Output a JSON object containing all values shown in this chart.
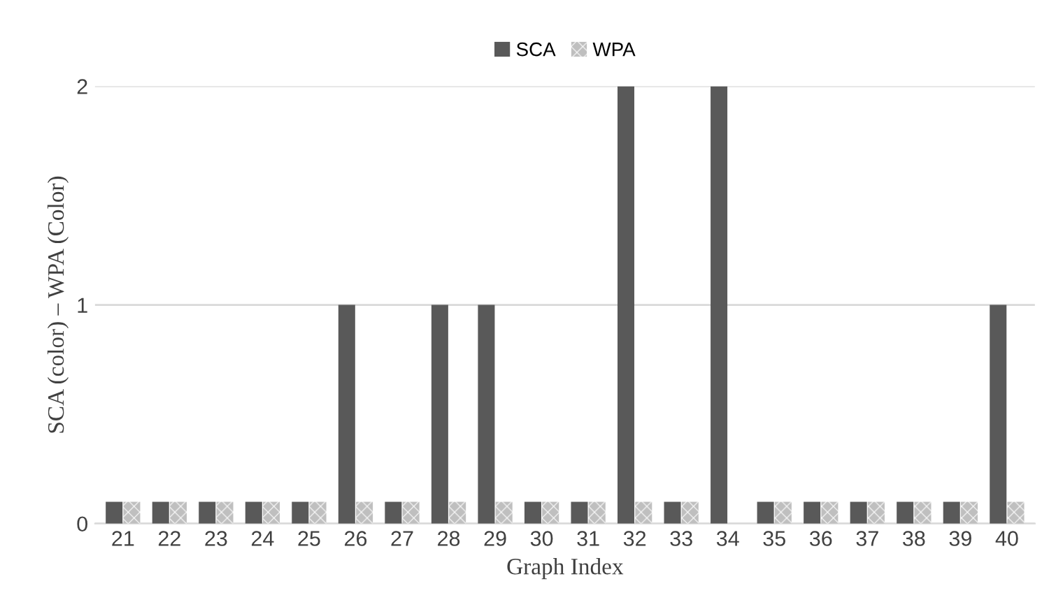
{
  "chart_data": {
    "type": "bar",
    "xlabel": "Graph Index",
    "ylabel": "SCA (color) – WPA (Color)",
    "categories": [
      "21",
      "22",
      "23",
      "24",
      "25",
      "26",
      "27",
      "28",
      "29",
      "30",
      "31",
      "32",
      "33",
      "34",
      "35",
      "36",
      "37",
      "38",
      "39",
      "40"
    ],
    "series": [
      {
        "name": "SCA",
        "color": "#595959",
        "values": [
          0.1,
          0.1,
          0.1,
          0.1,
          0.1,
          1,
          0.1,
          1,
          1,
          0.1,
          0.1,
          2,
          0.1,
          2,
          0.1,
          0.1,
          0.1,
          0.1,
          0.1,
          1
        ]
      },
      {
        "name": "WPA",
        "color": "#bfbfbf",
        "values": [
          0.1,
          0.1,
          0.1,
          0.1,
          0.1,
          0.1,
          0.1,
          0.1,
          0.1,
          0.1,
          0.1,
          0.1,
          0.1,
          0,
          0.1,
          0.1,
          0.1,
          0.1,
          0.1,
          0.1
        ]
      }
    ],
    "ylim": [
      0,
      2
    ],
    "yticks": [
      0,
      1,
      2
    ],
    "grid": "y",
    "legend": "top"
  }
}
